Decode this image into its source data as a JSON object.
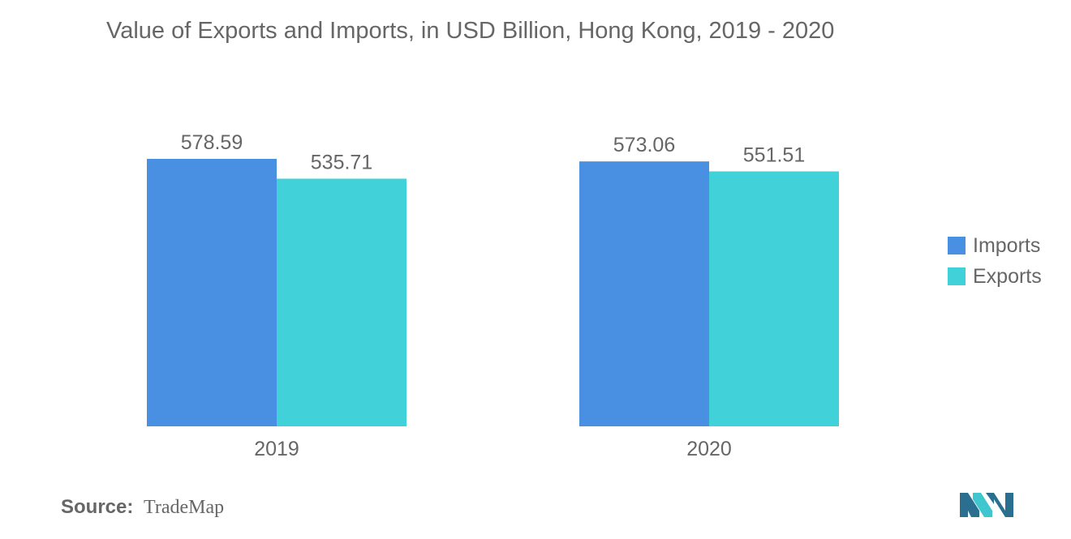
{
  "chart_data": {
    "type": "bar",
    "title": "Value of Exports and Imports, in USD Billion, Hong Kong, 2019 - 2020",
    "categories": [
      "2019",
      "2020"
    ],
    "series": [
      {
        "name": "Imports",
        "values": [
          578.59,
          573.06
        ],
        "labels": [
          "578.59",
          "573.06"
        ],
        "color": "#4a90e2"
      },
      {
        "name": "Exports",
        "values": [
          535.71,
          551.51
        ],
        "labels": [
          "535.71",
          "551.51"
        ],
        "color": "#40d1d9"
      }
    ],
    "ylim": [
      0,
      578.59
    ],
    "grid": false,
    "legend_position": "right"
  },
  "source": {
    "label": "Source:",
    "value": "TradeMap"
  },
  "colors": {
    "text": "#666666",
    "logo_dark": "#2a6f8f",
    "logo_light": "#3fc6cf"
  }
}
